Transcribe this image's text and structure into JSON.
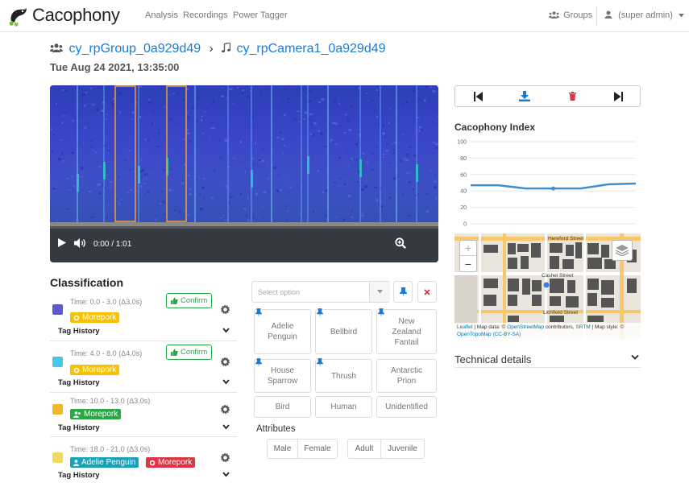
{
  "nav": {
    "brand": "Cacophony",
    "links": [
      "Analysis",
      "Recordings",
      "Power Tagger"
    ],
    "groups": "Groups",
    "user": "(super admin)"
  },
  "header": {
    "group": "cy_rpGroup_0a929d49",
    "device": "cy_rpCamera1_0a929d49",
    "datetime": "Tue Aug 24 2021, 13:35:00"
  },
  "player": {
    "time": "0:00 / 1:01"
  },
  "cacophony_index": {
    "title": "Cacophony Index"
  },
  "chart_data": {
    "type": "line",
    "title": "",
    "yticks": [
      "100",
      "80",
      "60",
      "40",
      "20",
      "0"
    ],
    "ylim": [
      0,
      100
    ],
    "x": [
      0,
      1,
      2,
      3,
      4,
      5,
      6
    ],
    "values": [
      47,
      47,
      43,
      43,
      43,
      48,
      49
    ],
    "color": "#3d8fd1"
  },
  "map": {
    "streets": [
      "Hereford Street",
      "Cashel Street",
      "Lichfield Street"
    ],
    "zoom_in": "+",
    "zoom_out": "−",
    "attribution_1": "Leaflet",
    "attribution_2": " | Map data: © ",
    "attribution_3": "OpenStreetMap",
    "attribution_4": " contributors, ",
    "attribution_5": "SRTM",
    "attribution_6": " | Map style: © ",
    "attribution_7": "OpenTopoMap",
    "attribution_8": " (CC-BY-SA)"
  },
  "technical": {
    "label": "Technical details"
  },
  "classification": {
    "title": "Classification",
    "rows": [
      {
        "time": "Time: 0.0 - 3.0 (Δ3.0s)",
        "color": "#5b5bcf",
        "tags": [
          {
            "label": "Morepork",
            "style": "yellow"
          }
        ],
        "confirm": "Confirm",
        "history": "Tag History"
      },
      {
        "time": "Time: 4.0 - 8.0 (Δ4.0s)",
        "color": "#45c8ee",
        "tags": [
          {
            "label": "Morepork",
            "style": "yellow"
          }
        ],
        "confirm": "Confirm",
        "history": "Tag History"
      },
      {
        "time": "Time: 10.0 - 13.0 (Δ3.0s)",
        "color": "#f0b82a",
        "tags": [
          {
            "label": "Morepork",
            "style": "green"
          }
        ],
        "history": "Tag History"
      },
      {
        "time": "Time: 18.0 - 21.0 (Δ3.0s)",
        "color": "#f5d85e",
        "tags": [
          {
            "label": "Adelie Penguin",
            "style": "teal"
          },
          {
            "label": "Morepork",
            "style": "red"
          }
        ],
        "history": "Tag History"
      }
    ]
  },
  "tagger": {
    "placeholder": "Select option",
    "buttons": [
      {
        "label": "Adelie Penguin",
        "pinned": true
      },
      {
        "label": "Bellbird",
        "pinned": true
      },
      {
        "label": "New Zealand Fantail",
        "pinned": true
      },
      {
        "label": "House Sparrow",
        "pinned": true
      },
      {
        "label": "Thrush",
        "pinned": true
      },
      {
        "label": "Antarctic Prion",
        "pinned": false
      },
      {
        "label": "Bird",
        "pinned": false
      },
      {
        "label": "Human",
        "pinned": false
      },
      {
        "label": "Unidentified",
        "pinned": false
      }
    ],
    "attributes_title": "Attributes",
    "attributes": [
      "Male",
      "Female",
      "Adult",
      "Juvenile"
    ]
  }
}
